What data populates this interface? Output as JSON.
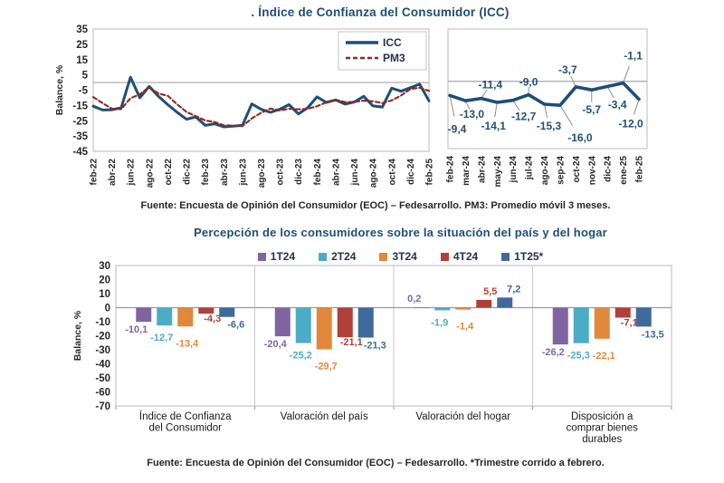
{
  "colors": {
    "title_blue": "#1f4e79",
    "icc_line": "#1f4e79",
    "pm3_line": "#8c2a21",
    "axis_text": "#262626",
    "frame": "#c6c6c6",
    "zero_line": "#a6a6a6",
    "leader_line": "#8c8c8c",
    "point_label": "#1f4e79"
  },
  "chart1": {
    "title": ". Índice de Confianza del Consumidor (ICC)",
    "source": "Fuente: Encuesta de Opinión del Consumidor (EOC) – Fedesarrollo. PM3: Promedio móvil 3 meses.",
    "ylabel": "Balance, %"
  },
  "chart2": {
    "title": "Percepción de los consumidores sobre la situación del país y del hogar",
    "source": "Fuente: Encuesta de Opinión del Consumidor (EOC) – Fedesarrollo. *Trimestre corrido a febrero.",
    "ylabel": "Balance, %"
  },
  "chart_data": [
    {
      "id": "icc_full",
      "type": "line",
      "title": ". Índice de Confianza del Consumidor (ICC)",
      "ylabel": "Balance, %",
      "ylim": [
        -45,
        35
      ],
      "yticks": [
        35,
        25,
        15,
        5,
        -5,
        -15,
        -25,
        -35,
        -45
      ],
      "x": [
        "feb-22",
        "mar-22",
        "abr-22",
        "may-22",
        "jun-22",
        "jul-22",
        "ago-22",
        "sep-22",
        "oct-22",
        "nov-22",
        "dic-22",
        "ene-23",
        "feb-23",
        "mar-23",
        "abr-23",
        "may-23",
        "jun-23",
        "jul-23",
        "ago-23",
        "sep-23",
        "oct-23",
        "nov-23",
        "dic-23",
        "ene-24",
        "feb-24",
        "mar-24",
        "abr-24",
        "may-24",
        "jun-24",
        "jul-24",
        "ago-24",
        "sep-24",
        "oct-24",
        "nov-24",
        "dic-24",
        "ene-25",
        "feb-25"
      ],
      "xtick_every": 2,
      "legend": [
        "ICC",
        "PM3"
      ],
      "series": [
        {
          "name": "ICC",
          "dash": false,
          "values": [
            -15.5,
            -18,
            -17.8,
            -16.5,
            3.5,
            -10,
            -2.5,
            -9,
            -14.5,
            -19.5,
            -24,
            -22.5,
            -28,
            -27,
            -29,
            -28.5,
            -28,
            -14,
            -17.5,
            -19.5,
            -17.5,
            -14.5,
            -20.5,
            -16.5,
            -9.4,
            -13,
            -11.4,
            -14.1,
            -12.7,
            -9,
            -15.3,
            -16,
            -3.7,
            -5.7,
            -3.4,
            -1.1,
            -12
          ]
        },
        {
          "name": "PM3",
          "dash": true,
          "values": [
            -9.5,
            -13.5,
            -17.1,
            -17.4,
            -10.3,
            -7.7,
            -3,
            -7.2,
            -8.7,
            -14.3,
            -19.3,
            -22,
            -24.8,
            -25.8,
            -28,
            -28.2,
            -28.5,
            -23.5,
            -19.8,
            -17,
            -18.2,
            -17.2,
            -17.5,
            -17.2,
            -15.5,
            -13,
            -11.3,
            -12.8,
            -12.7,
            -11.9,
            -12.3,
            -13.4,
            -11.7,
            -8.5,
            -4.3,
            -3.4,
            -5.5
          ]
        }
      ]
    },
    {
      "id": "icc_last13",
      "type": "line",
      "ylim": [
        -45,
        35
      ],
      "x": [
        "feb-24",
        "mar-24",
        "abr-24",
        "may-24",
        "jun-24",
        "jul-24",
        "ago-24",
        "sep-24",
        "oct-24",
        "nov-24",
        "dic-24",
        "ene-25",
        "feb-25"
      ],
      "values": [
        -9.4,
        -13.0,
        -11.4,
        -14.1,
        -12.7,
        -9.0,
        -15.3,
        -16.0,
        -3.7,
        -5.7,
        -3.4,
        -1.1,
        -12.0
      ],
      "point_labels": [
        "-9,4",
        "-13,0",
        "-11,4",
        "-14,1",
        "-12,7",
        "-9,0",
        "-15,3",
        "-16,0",
        "-3,7",
        "-5,7",
        "-3,4",
        "-1,1",
        "-12,0"
      ]
    },
    {
      "id": "perception_bars",
      "type": "bar",
      "title": "Percepción de los consumidores sobre la situación del país y del hogar",
      "ylabel": "Balance, %",
      "ylim": [
        -70,
        30
      ],
      "yticks": [
        30,
        20,
        10,
        0,
        -10,
        -20,
        -30,
        -40,
        -50,
        -60,
        -70
      ],
      "categories": [
        [
          "Índice de Confianza",
          "del Consumidor"
        ],
        [
          "Valoración del país"
        ],
        [
          "Valoración del hogar"
        ],
        [
          "Disposición a",
          "comprar bienes",
          "durables"
        ]
      ],
      "series": [
        {
          "name": "1T24",
          "color": "#8064a2",
          "values": [
            -10.1,
            -20.4,
            0.2,
            -26.2
          ],
          "labels": [
            "-10,1",
            "-20,4",
            "0,2",
            "-26,2"
          ]
        },
        {
          "name": "2T24",
          "color": "#4bacc6",
          "values": [
            -12.7,
            -25.2,
            -1.9,
            -25.3
          ],
          "labels": [
            "-12,7",
            "-25,2",
            "-1,9",
            "-25,3"
          ]
        },
        {
          "name": "3T24",
          "color": "#e2883b",
          "values": [
            -13.4,
            -29.7,
            -1.4,
            -22.1
          ],
          "labels": [
            "-13,4",
            "-29,7",
            "-1,4",
            "-22,1"
          ]
        },
        {
          "name": "4T24",
          "color": "#b04039",
          "values": [
            -4.3,
            -21.1,
            5.5,
            -7.1
          ],
          "labels": [
            "-4,3",
            "-21,1",
            "5,5",
            "-7,1"
          ]
        },
        {
          "name": "1T25*",
          "color": "#40699c",
          "values": [
            -6.6,
            -21.3,
            7.2,
            -13.5
          ],
          "labels": [
            "-6,6",
            "-21,3",
            "7,2",
            "-13,5"
          ]
        }
      ]
    }
  ]
}
